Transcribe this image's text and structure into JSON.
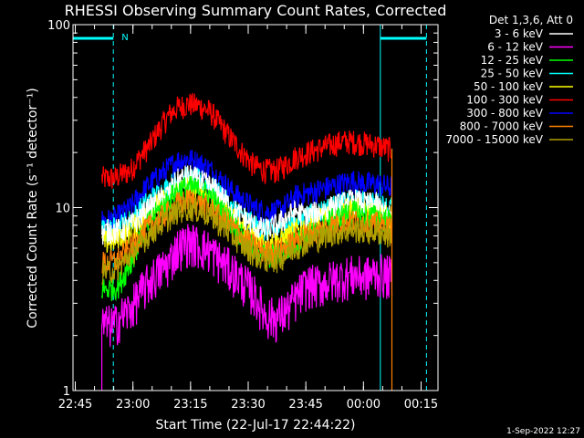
{
  "chart_data": {
    "type": "line",
    "title": "RHESSI Observing Summary Count Rates, Corrected",
    "xlabel": "Start Time (22-Jul-17 22:44:22)",
    "ylabel": "Corrected Count Rate (s⁻¹ detector⁻¹)",
    "yscale": "log",
    "ylim": [
      1,
      100
    ],
    "y_ticks": [
      "1",
      "10",
      "100"
    ],
    "xlim_minutes": [
      0,
      95
    ],
    "x_ticks": [
      "22:45",
      "23:00",
      "23:15",
      "23:30",
      "23:45",
      "00:00",
      "00:15"
    ],
    "x_tick_minutes": [
      0.6,
      15.6,
      30.6,
      45.6,
      60.6,
      75.6,
      90.6
    ],
    "grid": false,
    "legend_header": "Det 1,3,6, Att 0",
    "legend_position": "top-right",
    "footer": "1-Sep-2022 12:27",
    "night_bars": [
      {
        "start": 0,
        "end": 10.5
      },
      {
        "start": 80,
        "end": 92
      }
    ],
    "night_label": "N",
    "saa_markers_minutes": [
      0,
      10.5,
      80,
      92
    ],
    "data_span_minutes": [
      7.5,
      83
    ],
    "series": [
      {
        "name": "3 - 6 keV",
        "color": "#ffffff",
        "t": [
          7.5,
          9,
          11,
          12,
          15,
          20,
          25,
          27,
          30,
          33,
          36,
          38,
          41,
          44,
          47,
          50,
          53,
          56,
          58,
          61,
          64,
          67,
          70,
          73,
          76,
          79,
          82,
          83
        ],
        "v": [
          7.2,
          7.5,
          7.5,
          7.5,
          8,
          10,
          12,
          14,
          15,
          14,
          13,
          12,
          10,
          9,
          8,
          7.5,
          8,
          9,
          9.5,
          9,
          9.5,
          10,
          10.5,
          11,
          10.5,
          10.5,
          9,
          9
        ]
      },
      {
        "name": "6 - 12 keV",
        "color": "#ff00ff",
        "t": [
          7.5,
          9,
          11,
          12,
          15,
          20,
          25,
          27,
          30,
          33,
          36,
          38,
          41,
          44,
          47,
          50,
          53,
          56,
          58,
          61,
          64,
          67,
          70,
          73,
          76,
          79,
          82,
          83
        ],
        "v": [
          2.3,
          2.3,
          2.3,
          2.5,
          2.8,
          4,
          5,
          6,
          6.5,
          6.2,
          5.8,
          5.2,
          4.6,
          4,
          3.4,
          2.6,
          2.5,
          2.8,
          3.2,
          3.8,
          3.8,
          4,
          4.2,
          4.3,
          4.2,
          4.4,
          4.3,
          4.2
        ]
      },
      {
        "name": "12 - 25 keV",
        "color": "#00ff00",
        "t": [
          7.5,
          9,
          11,
          12,
          15,
          20,
          25,
          27,
          30,
          33,
          36,
          38,
          41,
          44,
          47,
          50,
          53,
          56,
          58,
          61,
          64,
          67,
          70,
          73,
          76,
          79,
          82,
          83
        ],
        "v": [
          3.6,
          3.6,
          3.7,
          3.8,
          5,
          8.5,
          11,
          12.5,
          13,
          12.5,
          11.5,
          10,
          8.5,
          7,
          6,
          5.5,
          5.5,
          6,
          6.5,
          7,
          7.5,
          8.5,
          9,
          9.5,
          9,
          9,
          8.5,
          8.5
        ]
      },
      {
        "name": "25 - 50 keV",
        "color": "#00ffff",
        "t": [
          7.5,
          9,
          11,
          12,
          15,
          20,
          25,
          27,
          30,
          33,
          36,
          38,
          41,
          44,
          47,
          50,
          53,
          56,
          58,
          61,
          64,
          67,
          70,
          73,
          76,
          79,
          82,
          83
        ],
        "v": [
          7.5,
          7.5,
          7.7,
          8,
          8.5,
          11,
          13,
          14,
          14.5,
          14,
          13,
          12,
          10,
          9,
          8,
          7.5,
          7.5,
          8,
          8.5,
          9,
          9.5,
          10,
          10.5,
          11,
          10.5,
          10.5,
          10,
          10
        ]
      },
      {
        "name": "50 - 100 keV",
        "color": "#ffff00",
        "t": [
          7.5,
          9,
          11,
          12,
          15,
          20,
          25,
          27,
          30,
          33,
          36,
          38,
          41,
          44,
          47,
          50,
          53,
          56,
          58,
          61,
          64,
          67,
          70,
          73,
          76,
          79,
          82,
          83
        ],
        "v": [
          6.5,
          6.5,
          6.7,
          7,
          7.5,
          9.5,
          11.5,
          12.5,
          13,
          12.5,
          11.5,
          10.5,
          9,
          8,
          7,
          6.5,
          6.5,
          7,
          7.5,
          8,
          8.5,
          9,
          9.5,
          10,
          9.5,
          9.5,
          9,
          9
        ]
      },
      {
        "name": "100 - 300 keV",
        "color": "#ff0000",
        "t": [
          7.5,
          9,
          11,
          12,
          15,
          20,
          25,
          27,
          30,
          33,
          36,
          38,
          41,
          44,
          47,
          50,
          53,
          56,
          58,
          61,
          64,
          67,
          70,
          73,
          76,
          79,
          82,
          83
        ],
        "v": [
          14.5,
          14.5,
          14.5,
          15,
          16,
          22,
          32,
          35,
          37,
          36,
          33,
          29,
          24,
          20,
          17,
          16,
          16,
          17.5,
          19,
          20,
          21,
          22,
          23,
          23,
          22.5,
          22,
          21,
          21
        ]
      },
      {
        "name": "300 - 800 keV",
        "color": "#0000ff",
        "t": [
          7.5,
          9,
          11,
          12,
          15,
          20,
          25,
          27,
          30,
          33,
          36,
          38,
          41,
          44,
          47,
          50,
          53,
          56,
          58,
          61,
          64,
          67,
          70,
          73,
          76,
          79,
          82,
          83
        ],
        "v": [
          8.5,
          8.5,
          8.7,
          9,
          10,
          13.5,
          16.5,
          18,
          18.5,
          17.5,
          16,
          14.5,
          12.5,
          11,
          10,
          9.5,
          9.5,
          10.5,
          11.5,
          12,
          12.5,
          13,
          13.5,
          14,
          13.5,
          13.5,
          13,
          13
        ]
      },
      {
        "name": "800 - 7000 keV",
        "color": "#ff8000",
        "t": [
          7.5,
          9,
          11,
          12,
          15,
          20,
          25,
          27,
          30,
          33,
          36,
          38,
          41,
          44,
          47,
          50,
          53,
          56,
          58,
          61,
          64,
          67,
          70,
          73,
          76,
          79,
          82,
          83
        ],
        "v": [
          5,
          5,
          5.1,
          5.3,
          6,
          8,
          9.5,
          10.5,
          11,
          10.5,
          9.8,
          9,
          8,
          7,
          6.2,
          5.8,
          5.8,
          6.2,
          6.8,
          7.2,
          7.5,
          8,
          8.2,
          8.5,
          8.2,
          8.2,
          7.8,
          7.8
        ]
      },
      {
        "name": "7000 - 15000 keV",
        "color": "#b0a000",
        "t": [
          7.5,
          9,
          11,
          12,
          15,
          20,
          25,
          27,
          30,
          33,
          36,
          38,
          41,
          44,
          47,
          50,
          53,
          56,
          58,
          61,
          64,
          67,
          70,
          73,
          76,
          79,
          82,
          83
        ],
        "v": [
          4.5,
          4.5,
          4.6,
          4.8,
          5.5,
          7.2,
          8.8,
          9.5,
          10,
          9.6,
          9,
          8.2,
          7.2,
          6.3,
          5.6,
          5.2,
          5.2,
          5.6,
          6.1,
          6.5,
          6.8,
          7.2,
          7.4,
          7.6,
          7.4,
          7.4,
          7.1,
          7.1
        ]
      }
    ]
  }
}
